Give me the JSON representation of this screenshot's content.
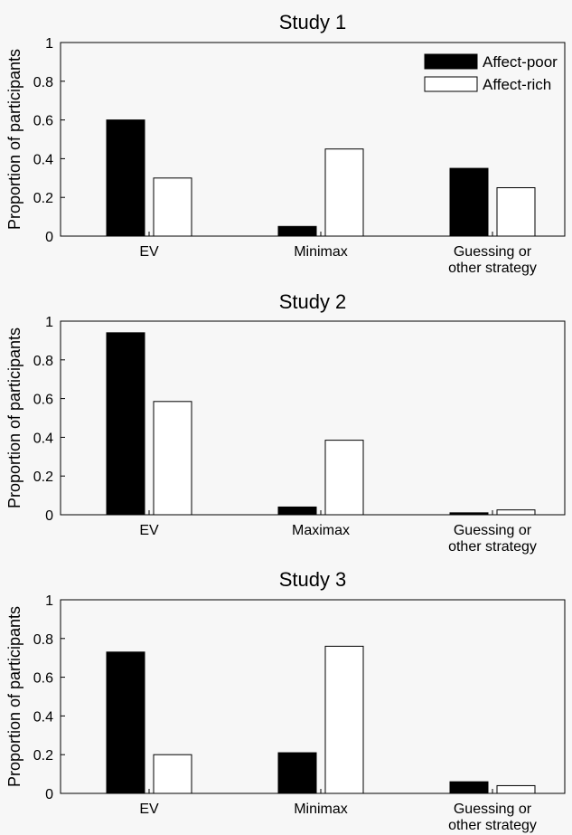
{
  "chart_data": [
    {
      "type": "bar",
      "title": "Study 1",
      "ylabel": "Proportion of participants",
      "xlabel": "",
      "ylim": [
        0,
        1
      ],
      "yticks": [
        "0",
        "0.2",
        "0.4",
        "0.6",
        "0.8",
        "1"
      ],
      "categories": [
        "EV",
        "Minimax",
        "Guessing or\nother strategy"
      ],
      "series": [
        {
          "name": "Affect-poor",
          "color": "#000000",
          "values": [
            0.6,
            0.05,
            0.35
          ]
        },
        {
          "name": "Affect-rich",
          "color": "#ffffff",
          "values": [
            0.3,
            0.45,
            0.25
          ]
        }
      ],
      "legend": {
        "position": "top-right",
        "entries": [
          "Affect-poor",
          "Affect-rich"
        ]
      }
    },
    {
      "type": "bar",
      "title": "Study 2",
      "ylabel": "Proportion of participants",
      "xlabel": "",
      "ylim": [
        0,
        1
      ],
      "yticks": [
        "0",
        "0.2",
        "0.4",
        "0.6",
        "0.8",
        "1"
      ],
      "categories": [
        "EV",
        "Maximax",
        "Guessing or\nother strategy"
      ],
      "series": [
        {
          "name": "Affect-poor",
          "color": "#000000",
          "values": [
            0.94,
            0.04,
            0.01
          ]
        },
        {
          "name": "Affect-rich",
          "color": "#ffffff",
          "values": [
            0.585,
            0.385,
            0.025
          ]
        }
      ]
    },
    {
      "type": "bar",
      "title": "Study 3",
      "ylabel": "Proportion of participants",
      "xlabel": "",
      "ylim": [
        0,
        1
      ],
      "yticks": [
        "0",
        "0.2",
        "0.4",
        "0.6",
        "0.8",
        "1"
      ],
      "categories": [
        "EV",
        "Minimax",
        "Guessing or\nother strategy"
      ],
      "series": [
        {
          "name": "Affect-poor",
          "color": "#000000",
          "values": [
            0.73,
            0.21,
            0.06
          ]
        },
        {
          "name": "Affect-rich",
          "color": "#ffffff",
          "values": [
            0.2,
            0.76,
            0.04
          ]
        }
      ]
    }
  ]
}
